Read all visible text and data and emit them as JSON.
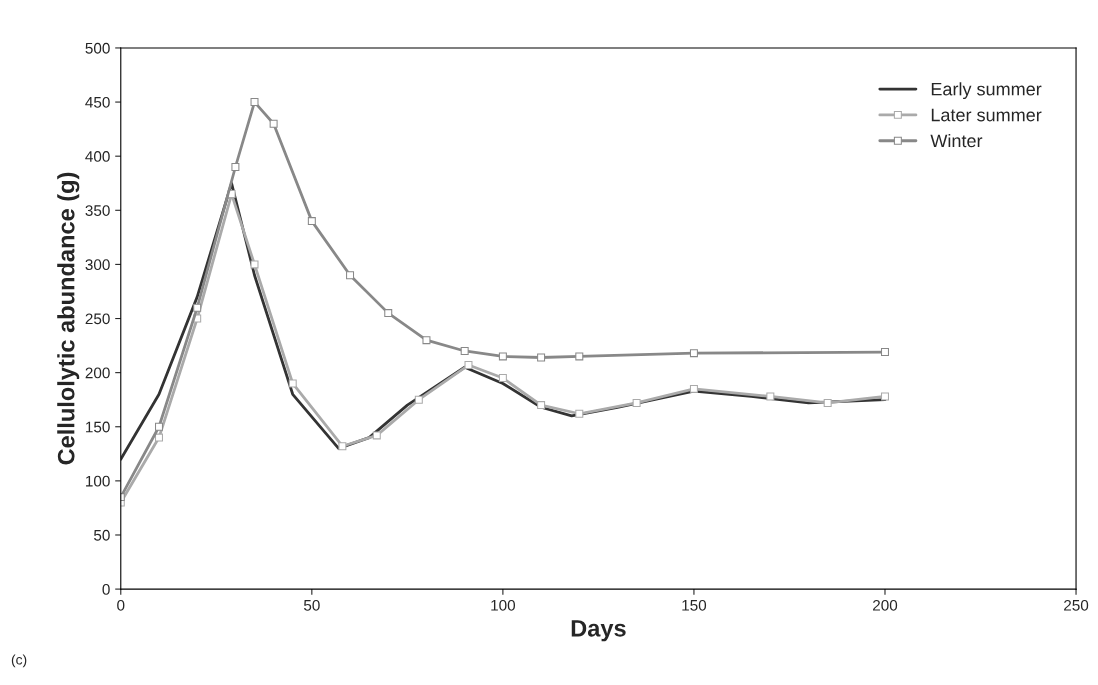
{
  "chart_data": {
    "type": "line",
    "xlabel": "Days",
    "ylabel": "Cellulolytic abundance (g)",
    "xlim": [
      0,
      250
    ],
    "xticks": [
      0,
      50,
      100,
      150,
      200,
      250
    ],
    "ylim": [
      0,
      500
    ],
    "yticks": [
      0,
      50,
      100,
      150,
      200,
      250,
      300,
      350,
      400,
      450,
      500
    ],
    "grid": false,
    "legend": "top right",
    "annotations": [
      "(c)"
    ],
    "series": [
      {
        "name": "Early summer",
        "color": "#333333",
        "marker": "none",
        "x": [
          0,
          10,
          20,
          29,
          35,
          45,
          57,
          65,
          75,
          90,
          100,
          110,
          118,
          130,
          150,
          165,
          180,
          200
        ],
        "values": [
          120,
          180,
          270,
          375,
          290,
          180,
          130,
          140,
          170,
          205,
          190,
          168,
          160,
          168,
          183,
          178,
          172,
          175
        ]
      },
      {
        "name": "Later summer",
        "color": "#aaaaaa",
        "marker": "square",
        "x": [
          0,
          10,
          20,
          29,
          35,
          45,
          58,
          67,
          78,
          91,
          100,
          110,
          120,
          135,
          150,
          170,
          185,
          200
        ],
        "values": [
          80,
          140,
          250,
          365,
          300,
          190,
          132,
          142,
          175,
          207,
          195,
          170,
          162,
          172,
          185,
          178,
          172,
          178
        ]
      },
      {
        "name": "Winter",
        "color": "#888888",
        "marker": "square",
        "x": [
          0,
          10,
          20,
          30,
          35,
          40,
          50,
          60,
          70,
          80,
          90,
          100,
          110,
          120,
          150,
          200
        ],
        "values": [
          85,
          150,
          260,
          390,
          450,
          430,
          340,
          290,
          255,
          230,
          220,
          215,
          214,
          215,
          218,
          219
        ]
      }
    ]
  }
}
